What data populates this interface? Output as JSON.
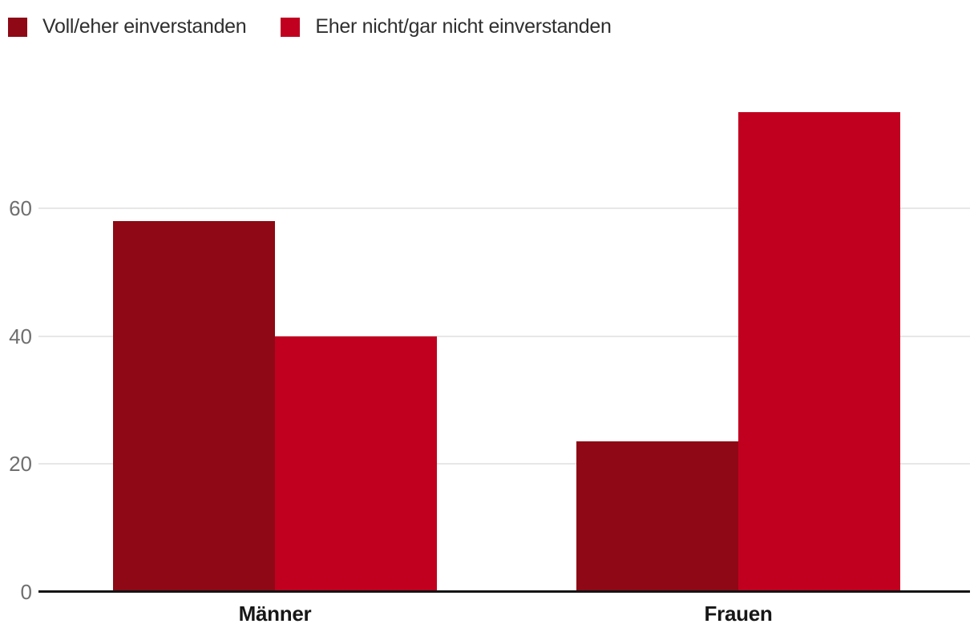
{
  "chart_data": {
    "type": "bar",
    "categories": [
      "Männer",
      "Frauen"
    ],
    "series": [
      {
        "name": "Voll/eher einverstanden",
        "color": "#8E0915",
        "values": [
          58,
          23.5
        ]
      },
      {
        "name": "Eher nicht/gar nicht einverstanden",
        "color": "#C1001F",
        "values": [
          40,
          75
        ]
      }
    ],
    "title": "",
    "xlabel": "",
    "ylabel": "",
    "yticks": [
      0,
      20,
      40,
      60
    ],
    "ylim": [
      0,
      80
    ],
    "grid": true,
    "legend_position": "top-left"
  },
  "colors": {
    "background": "#FFFFFF",
    "gridline": "#E7E7E7",
    "axis_line": "#141414",
    "tick_label": "#6F6F6F",
    "category_label": "#171717",
    "legend_label": "#2F2F2F"
  }
}
